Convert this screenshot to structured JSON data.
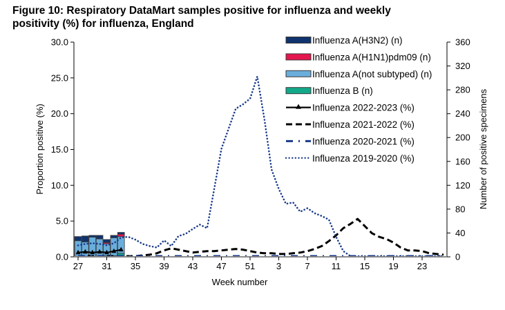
{
  "title": "Figure 10: Respiratory DataMart samples positive for influenza and weekly positivity (%) for influenza, England",
  "chart_data": {
    "type": "bar",
    "title": "Figure 10: Respiratory DataMart samples positive for influenza and weekly positivity (%) for influenza, England",
    "xlabel": "Week number",
    "ylabel": "Proportion positive (%)",
    "y2label": "Number of positive specimens",
    "ylim": [
      0,
      30
    ],
    "y2lim": [
      0,
      360
    ],
    "yticks": [
      "0.0",
      "5.0",
      "10.0",
      "15.0",
      "20.0",
      "25.0",
      "30.0"
    ],
    "y2ticks": [
      "0",
      "40",
      "80",
      "120",
      "160",
      "200",
      "240",
      "280",
      "320",
      "360"
    ],
    "x": [
      27,
      28,
      29,
      30,
      31,
      32,
      33,
      34,
      35,
      36,
      37,
      38,
      39,
      40,
      41,
      42,
      43,
      44,
      45,
      46,
      47,
      48,
      49,
      50,
      51,
      52,
      1,
      2,
      3,
      4,
      5,
      6,
      7,
      8,
      9,
      10,
      11,
      12,
      13,
      14,
      15,
      16,
      17,
      18,
      19,
      20,
      21,
      22,
      23,
      24,
      25,
      26
    ],
    "xtick_labels": [
      "27",
      "31",
      "35",
      "39",
      "43",
      "47",
      "51",
      "3",
      "7",
      "11",
      "15",
      "19",
      "23"
    ],
    "legend_position": "top-right",
    "bar_series": [
      {
        "name": "Influenza A(H3N2) (n)",
        "color": "#10336e",
        "values": [
          7,
          10,
          3,
          6,
          5,
          4,
          3
        ]
      },
      {
        "name": "Influenza A(H1N1)pdm09 (n)",
        "color": "#e5154e",
        "values": [
          0,
          0,
          0,
          0,
          2,
          0,
          4
        ]
      },
      {
        "name": "Influenza A(not subtyped) (n)",
        "color": "#6aaedb",
        "values": [
          26,
          24,
          32,
          29,
          20,
          30,
          28
        ]
      },
      {
        "name": "Influenza B (n)",
        "color": "#12a98a",
        "values": [
          1,
          1,
          1,
          1,
          2,
          2,
          6
        ]
      }
    ],
    "bar_stack_order": [
      "Influenza B (n)",
      "Influenza A(not subtyped) (n)",
      "Influenza A(H1N1)pdm09 (n)",
      "Influenza A(H3N2) (n)"
    ],
    "line_series": [
      {
        "name": "Influenza 2022-2023 (%)",
        "style": "solid-triangle",
        "color": "#000000",
        "values": [
          0.6,
          0.7,
          0.6,
          0.7,
          0.6,
          0.8,
          1.0
        ]
      },
      {
        "name": "Influenza 2021-2022 (%)",
        "style": "dashed",
        "color": "#000000",
        "values": [
          0.1,
          0.1,
          0.1,
          0.1,
          0.1,
          0.1,
          0.1,
          0.1,
          0.1,
          0.2,
          0.3,
          0.5,
          0.9,
          1.2,
          1.0,
          0.8,
          0.6,
          0.7,
          0.8,
          0.8,
          0.9,
          1.0,
          1.1,
          1.0,
          0.8,
          0.6,
          0.5,
          0.5,
          0.4,
          0.4,
          0.5,
          0.6,
          0.8,
          1.1,
          1.5,
          2.2,
          3.0,
          4.0,
          4.6,
          5.3,
          4.3,
          3.3,
          2.8,
          2.5,
          2.0,
          1.3,
          0.9,
          0.9,
          0.8,
          0.5,
          0.4,
          0.3
        ]
      },
      {
        "name": "Influenza 2020-2021 (%)",
        "style": "dash-dot",
        "color": "#1a3a8a",
        "values": [
          0.1,
          0.1,
          0.1,
          0.1,
          0.1,
          0.1,
          0.1,
          0.1,
          0.1,
          0.1,
          0.1,
          0.1,
          0.1,
          0.1,
          0.1,
          0.1,
          0.1,
          0.1,
          0.1,
          0.1,
          0.1,
          0.1,
          0.1,
          0.1,
          0.1,
          0.1,
          0.1,
          0.1,
          0.1,
          0.1,
          0.1,
          0.1,
          0.1,
          0.1,
          0.1,
          0.1,
          0.1,
          0.1,
          0.1,
          0.1,
          0.1,
          0.1,
          0.1,
          0.1,
          0.1,
          0.1,
          0.1,
          0.1,
          0.1,
          0.1,
          0.1,
          0.1
        ]
      },
      {
        "name": "Influenza 2019-2020 (%)",
        "style": "dotted",
        "color": "#1a3a8a",
        "values": [
          1.6,
          1.8,
          1.9,
          1.8,
          1.6,
          1.9,
          2.7,
          2.8,
          2.4,
          1.8,
          1.5,
          1.3,
          2.3,
          1.5,
          2.9,
          3.2,
          3.9,
          4.5,
          4.0,
          9.5,
          15.1,
          17.9,
          20.7,
          21.3,
          22.1,
          25.2,
          19.2,
          12.2,
          9.5,
          7.4,
          7.6,
          6.3,
          6.8,
          6.1,
          5.7,
          5.2,
          2.8,
          0.8,
          0.1,
          0.1,
          0.1,
          0.1,
          0.1,
          0.1,
          0.1,
          0.1,
          0.1,
          0.1,
          0.1,
          0.1,
          0.1,
          0.1
        ]
      }
    ]
  }
}
